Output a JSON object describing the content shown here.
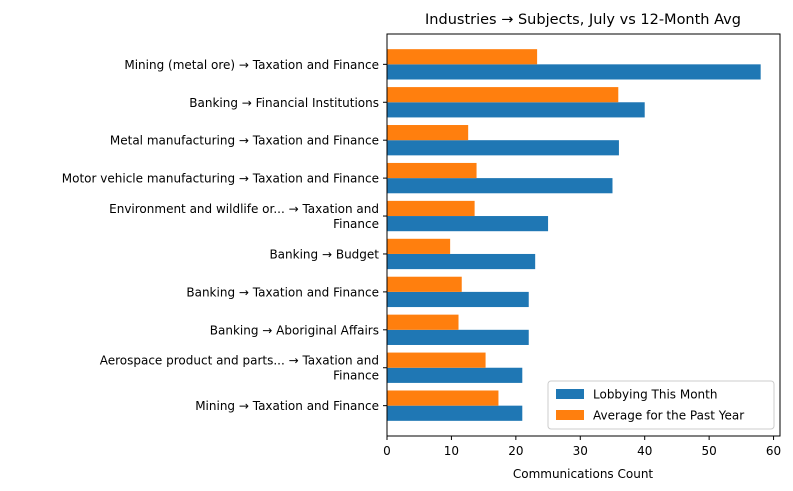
{
  "chart_data": {
    "type": "bar",
    "orientation": "horizontal",
    "title": "Industries → Subjects, July vs 12-Month Avg",
    "xlabel": "Communications Count",
    "ylabel": "",
    "xlim": [
      0,
      61
    ],
    "xticks": [
      0,
      10,
      20,
      30,
      40,
      50,
      60
    ],
    "grid": false,
    "legend_position": "lower-right",
    "categories": [
      [
        "Mining (metal ore) → Taxation and Finance"
      ],
      [
        "Banking → Financial Institutions"
      ],
      [
        "Metal manufacturing → Taxation and Finance"
      ],
      [
        "Motor vehicle manufacturing → Taxation and Finance"
      ],
      [
        "Environment and wildlife or... → Taxation and",
        "Finance"
      ],
      [
        "Banking → Budget"
      ],
      [
        "Banking → Taxation and Finance"
      ],
      [
        "Banking → Aboriginal Affairs"
      ],
      [
        "Aerospace product and parts... → Taxation and",
        "Finance"
      ],
      [
        "Mining → Taxation and Finance"
      ]
    ],
    "series": [
      {
        "name": "Lobbying This Month",
        "color": "#1f77b4",
        "values": [
          58,
          40,
          36,
          35,
          25,
          23,
          22,
          22,
          21,
          21
        ]
      },
      {
        "name": "Average for the Past Year",
        "color": "#ff7f0e",
        "values": [
          23.3,
          35.9,
          12.6,
          13.9,
          13.6,
          9.8,
          11.6,
          11.1,
          15.3,
          17.3
        ]
      }
    ]
  }
}
